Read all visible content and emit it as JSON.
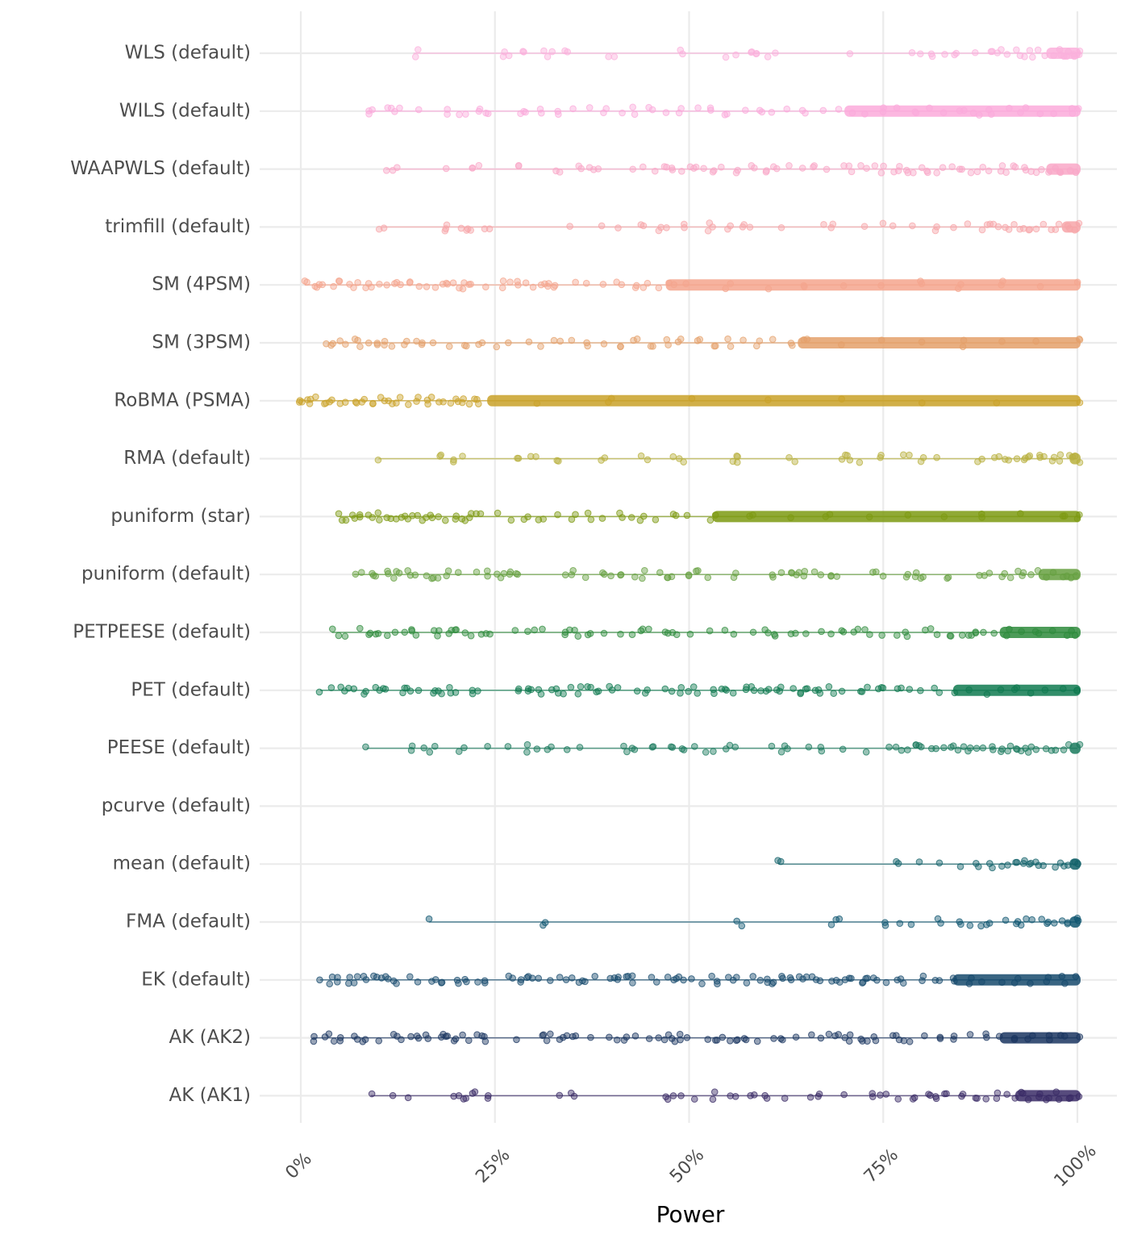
{
  "chart_data": {
    "type": "scatter",
    "subtype": "jittered strip plot with violin",
    "title": "",
    "xlabel": "Power",
    "ylabel": "",
    "xlim": [
      0,
      100
    ],
    "x_ticks": [
      0,
      25,
      50,
      75,
      100
    ],
    "x_tick_labels": [
      "0%",
      "25%",
      "50%",
      "75%",
      "100%"
    ],
    "grid": true,
    "legend": "none",
    "series": [
      {
        "name": "WLS (default)",
        "color": "#fbb0dc",
        "values": [
          14.5,
          15.5,
          26,
          27,
          29,
          31,
          32,
          34,
          40,
          49,
          55,
          56,
          58,
          59,
          60,
          61,
          71,
          79,
          80,
          81,
          81.5,
          83,
          84,
          87,
          89,
          90,
          91,
          92,
          93,
          94,
          95,
          96,
          97,
          98,
          98.5,
          99,
          99.5,
          100
        ],
        "dense_from": 96
      },
      {
        "name": "WILS (default)",
        "color": "#fbaadb",
        "values": [
          8.6,
          9.5,
          11,
          12,
          13,
          15,
          19,
          20,
          21,
          23,
          24,
          28,
          29,
          31,
          33,
          35,
          37,
          39,
          41,
          43,
          45,
          47,
          49,
          51,
          53,
          55,
          57,
          59,
          61,
          63,
          65,
          67,
          69,
          71,
          73,
          75,
          77,
          79,
          81,
          83,
          85,
          87,
          89,
          91,
          93,
          95,
          97,
          99,
          100
        ],
        "dense_from": 70
      },
      {
        "name": "WAAPWLS (default)",
        "color": "#f9a7c7",
        "values": [
          11,
          12,
          19,
          22,
          23,
          28,
          33,
          36,
          37.5,
          38,
          43,
          44,
          46,
          47,
          48,
          49,
          50,
          51,
          52,
          53,
          54,
          56,
          58,
          60,
          61,
          63,
          65,
          66,
          68,
          70,
          71,
          72,
          73,
          74,
          75,
          76,
          77,
          78,
          79,
          80,
          81,
          82,
          83,
          84,
          85,
          86,
          87,
          88,
          89,
          90,
          91,
          92,
          93,
          94,
          95,
          96,
          97,
          98,
          99,
          100
        ],
        "dense_from": 96
      },
      {
        "name": "trimfill (default)",
        "color": "#f7a5a8",
        "values": [
          10.5,
          18.5,
          19,
          21,
          21.5,
          24,
          34.5,
          38.5,
          41,
          44,
          46,
          47.5,
          49,
          52.5,
          53,
          55,
          57,
          58,
          62,
          67,
          68.5,
          73,
          75,
          76,
          79,
          82,
          84,
          86,
          88,
          89,
          90,
          91,
          92,
          93,
          94,
          95,
          96,
          97,
          98,
          99,
          100
        ],
        "dense_from": 98
      },
      {
        "name": "SM (4PSM)",
        "color": "#f4a58d",
        "values": [
          0.5,
          1.5,
          2,
          3,
          4,
          5,
          6,
          7,
          8,
          9,
          10,
          11,
          12,
          13,
          14,
          15,
          16,
          17,
          18,
          19,
          20,
          21,
          22,
          24,
          26,
          27,
          28,
          29,
          30,
          31,
          32,
          33,
          35,
          37,
          39,
          41,
          43,
          44,
          45,
          46,
          47,
          48,
          50,
          55,
          60,
          65,
          70,
          75,
          80,
          85,
          90,
          95,
          100
        ],
        "dense_from": 47
      },
      {
        "name": "SM (3PSM)",
        "color": "#e4a06a",
        "values": [
          3.5,
          4,
          5,
          6,
          7,
          8,
          9,
          10,
          11,
          12,
          13,
          14,
          15,
          16,
          17,
          19,
          21,
          23,
          25,
          27,
          29,
          31,
          33,
          35,
          37,
          39,
          41,
          43,
          45,
          47,
          49,
          51,
          53,
          55,
          57,
          59,
          61,
          63,
          65,
          70,
          75,
          80,
          85,
          90,
          95,
          100
        ],
        "dense_from": 64
      },
      {
        "name": "RoBMA (PSMA)",
        "color": "#c9a128",
        "values": [
          0,
          0.5,
          1,
          2,
          3,
          4,
          5,
          6,
          7,
          8,
          9,
          10,
          11,
          12,
          13,
          14,
          15,
          16,
          17,
          18,
          19,
          20,
          21,
          22,
          23,
          30,
          40,
          50,
          60,
          70,
          80,
          90,
          100
        ],
        "dense_from": 24
      },
      {
        "name": "RMA (default)",
        "color": "#b8b03e",
        "values": [
          10,
          18,
          19.5,
          21,
          28,
          30,
          33,
          39,
          44,
          45,
          48,
          49,
          56,
          56.5,
          63,
          64,
          70,
          70.5,
          72,
          75,
          78,
          80,
          82,
          87,
          88,
          89,
          90,
          91,
          92,
          93,
          94,
          95,
          96,
          97,
          98,
          99,
          100
        ],
        "dense_from": 99
      },
      {
        "name": "puniform (star)",
        "color": "#7d9a12",
        "values": [
          5,
          6,
          7,
          8,
          9,
          10,
          11,
          12,
          13,
          14,
          15,
          16,
          17,
          18,
          19,
          20,
          21,
          22,
          23,
          25,
          27,
          29,
          31,
          33,
          35,
          37,
          39,
          41,
          43,
          44,
          46,
          48,
          50,
          53,
          58,
          63,
          68,
          73,
          78,
          83,
          88,
          93,
          98,
          100
        ],
        "dense_from": 53
      },
      {
        "name": "puniform (default)",
        "color": "#66a040",
        "values": [
          6.8,
          8,
          9,
          10,
          11,
          12,
          13,
          14,
          15,
          16,
          17,
          18,
          19,
          20,
          23,
          24,
          25,
          26,
          27,
          28,
          34,
          35,
          37,
          39,
          40,
          41,
          43,
          44,
          46,
          47,
          48,
          50,
          51,
          52,
          56,
          61,
          62,
          63,
          64,
          65,
          66,
          67,
          68,
          69,
          74,
          75,
          78,
          79,
          80,
          83,
          87,
          88,
          89,
          90,
          91,
          92,
          93,
          94,
          95,
          96,
          97,
          98,
          99,
          100
        ],
        "dense_from": 95
      },
      {
        "name": "PETPEESE (default)",
        "color": "#2e8b3c",
        "values": [
          4,
          5,
          6,
          8,
          9,
          10,
          11,
          12,
          13,
          14,
          15,
          17,
          18,
          19,
          20,
          21,
          22,
          23,
          24,
          28,
          29,
          30,
          31,
          34,
          35,
          36,
          37,
          39,
          41,
          43,
          44,
          45,
          47,
          48,
          50,
          53,
          55,
          56,
          58,
          60,
          61,
          63,
          64,
          65,
          67,
          68,
          70,
          71,
          72,
          73,
          75,
          77,
          78,
          80,
          81,
          82,
          84,
          85,
          86,
          87,
          88,
          89,
          91,
          93,
          95,
          97,
          99,
          100
        ],
        "dense_from": 90
      },
      {
        "name": "PET (default)",
        "color": "#0f7a50",
        "values": [
          2.5,
          4,
          5,
          6,
          7,
          8,
          10,
          11,
          13,
          14,
          15,
          17,
          18,
          19,
          20,
          22,
          23,
          28,
          29,
          30,
          31,
          32,
          33,
          34,
          35,
          36,
          37,
          38,
          40,
          41,
          43,
          44,
          45,
          47,
          48,
          49,
          50,
          51,
          53,
          54,
          55,
          56,
          57,
          58,
          59,
          60,
          61,
          62,
          63,
          64,
          65,
          66,
          67,
          68,
          69,
          70,
          72,
          73,
          74,
          75,
          77,
          78,
          80,
          82,
          84,
          86,
          88,
          90,
          92,
          94,
          96,
          98,
          100
        ],
        "dense_from": 84
      },
      {
        "name": "PEESE (default)",
        "color": "#1a7a5d",
        "values": [
          8.5,
          14,
          16,
          17,
          20,
          21,
          24,
          27,
          29,
          30,
          32,
          34,
          36,
          42,
          43,
          45,
          48,
          49,
          51,
          52,
          53,
          55,
          56,
          61,
          62,
          63,
          65,
          67,
          70,
          73,
          76,
          77,
          78,
          79,
          80,
          81,
          82,
          83,
          84,
          85,
          86,
          87,
          88,
          89,
          90,
          91,
          92,
          93,
          94,
          95,
          96,
          97,
          98,
          99,
          100
        ],
        "dense_from": 99
      },
      {
        "name": "pcurve (default)",
        "color": "#0f6b6d",
        "values": []
      },
      {
        "name": "mean (default)",
        "color": "#12626a",
        "values": [
          61.5,
          77,
          80,
          82,
          85,
          87,
          89,
          90,
          91,
          92,
          93,
          94,
          95,
          96,
          97,
          98,
          99,
          100
        ],
        "dense_from": 99
      },
      {
        "name": "FMA (default)",
        "color": "#0f5670",
        "values": [
          16.5,
          31.5,
          56.5,
          68,
          69,
          75,
          77,
          79,
          82,
          85,
          86,
          88,
          89,
          91,
          92,
          93,
          94,
          95,
          96,
          97,
          98,
          99,
          100
        ],
        "dense_from": 99
      },
      {
        "name": "EK (default)",
        "color": "#164a6c",
        "values": [
          2.5,
          4,
          5,
          6,
          7,
          8,
          9,
          10,
          11,
          12,
          14,
          15,
          17,
          18,
          20,
          21,
          23,
          24,
          27,
          28,
          29,
          30,
          31,
          32,
          33,
          34,
          35,
          36,
          37,
          38,
          40,
          41,
          42,
          43,
          45,
          46,
          47,
          48,
          49,
          50,
          52,
          53,
          54,
          55,
          56,
          57,
          58,
          59,
          60,
          61,
          62,
          63,
          64,
          65,
          66,
          67,
          68,
          69,
          70,
          71,
          72,
          73,
          74,
          75,
          77,
          78,
          80,
          82,
          84,
          86,
          88,
          90,
          92,
          94,
          96,
          98,
          100
        ],
        "dense_from": 84
      },
      {
        "name": "AK (AK2)",
        "color": "#1a3560",
        "values": [
          1.5,
          3,
          4,
          5,
          7,
          8,
          10,
          12,
          13,
          14,
          15,
          16,
          18,
          19,
          20,
          21,
          22,
          23,
          24,
          28,
          31,
          32,
          33,
          34,
          35,
          37,
          40,
          41,
          42,
          43,
          45,
          46,
          47,
          48,
          49,
          50,
          52,
          53,
          54,
          55,
          56,
          57,
          59,
          61,
          62,
          64,
          66,
          67,
          68,
          69,
          70,
          71,
          72,
          73,
          74,
          76,
          77,
          78,
          80,
          82,
          84,
          86,
          88,
          90,
          92,
          94,
          96,
          98,
          100
        ],
        "dense_from": 90
      },
      {
        "name": "AK (AK1)",
        "color": "#3a2b66",
        "values": [
          9,
          11.5,
          14,
          20,
          21,
          22.5,
          24.5,
          33,
          35,
          47,
          48,
          49,
          51,
          53,
          55,
          56,
          58,
          60,
          62,
          66,
          67,
          70,
          74,
          75,
          77,
          79,
          81,
          82,
          83,
          85,
          87,
          88,
          90,
          91,
          92,
          93,
          94,
          95,
          96,
          97,
          98,
          99,
          100
        ],
        "dense_from": 92
      }
    ]
  }
}
